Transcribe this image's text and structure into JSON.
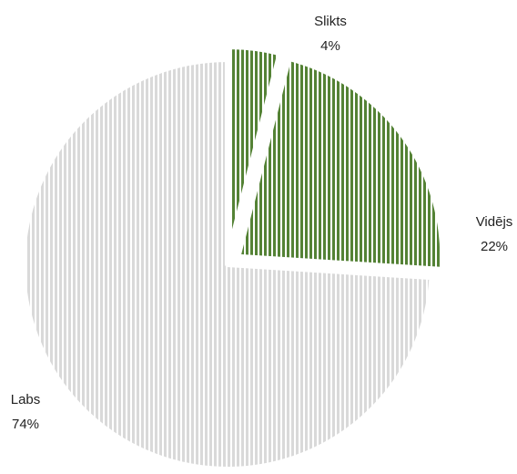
{
  "chart_data": {
    "type": "pie",
    "title": "",
    "slices": [
      {
        "label": "Slikts",
        "value": 4,
        "value_label": "4%",
        "color": "#548235",
        "pattern": "vertical-stripes",
        "exploded": true
      },
      {
        "label": "Vidējs",
        "value": 22,
        "value_label": "22%",
        "color": "#548235",
        "pattern": "vertical-stripes",
        "exploded": true
      },
      {
        "label": "Labs",
        "value": 74,
        "value_label": "74%",
        "color": "#d9d9d9",
        "pattern": "vertical-stripes",
        "exploded": false
      }
    ],
    "legend": "none"
  }
}
